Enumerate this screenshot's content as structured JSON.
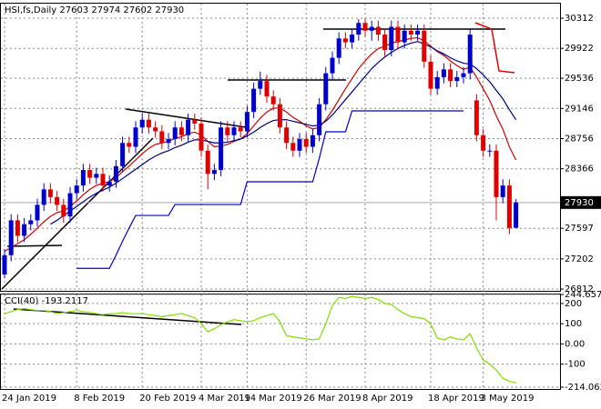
{
  "chart_data": [
    {
      "type": "candlestick",
      "title": "HSI,fs,Daily  27603 27974 27602 27930",
      "categories": [
        "24 Jan 2019",
        null,
        null,
        null,
        null,
        null,
        null,
        null,
        null,
        null,
        null,
        "8 Feb 2019",
        null,
        null,
        null,
        null,
        null,
        null,
        null,
        null,
        null,
        "20 Feb 2019",
        null,
        null,
        null,
        null,
        null,
        null,
        null,
        null,
        "4 Mar 2019",
        null,
        null,
        null,
        null,
        null,
        null,
        "14 Mar 2019",
        null,
        null,
        null,
        null,
        null,
        null,
        null,
        null,
        "26 Mar 2019",
        null,
        null,
        null,
        null,
        null,
        null,
        null,
        null,
        "8 Apr 2019",
        null,
        null,
        null,
        null,
        null,
        null,
        null,
        null,
        null,
        "18 Apr 2019",
        null,
        null,
        null,
        null,
        null,
        null,
        null,
        "3 May 2019",
        null,
        null,
        null,
        null,
        null
      ],
      "open": [
        27000,
        27250,
        27700,
        27500,
        27650,
        27700,
        27900,
        28100,
        28000,
        27900,
        27750,
        28050,
        28150,
        28350,
        28250,
        28300,
        28150,
        28200,
        28400,
        28700,
        28650,
        28900,
        29000,
        28900,
        28850,
        28700,
        28750,
        28900,
        28800,
        29000,
        28950,
        28600,
        28300,
        28350,
        28900,
        28800,
        28900,
        28850,
        29100,
        29400,
        29500,
        29300,
        29200,
        28900,
        28700,
        28600,
        28750,
        28650,
        28800,
        29200,
        29600,
        29800,
        30050,
        30000,
        30100,
        30250,
        30150,
        30200,
        30100,
        29900,
        30200,
        30000,
        30150,
        30100,
        30150,
        29750,
        29400,
        29550,
        29650,
        29500,
        29550,
        29600,
        29250,
        28800,
        28600,
        28600,
        28000,
        28150,
        27603
      ],
      "high": [
        27330,
        27780,
        27780,
        27730,
        27780,
        27980,
        28180,
        28180,
        28080,
        27980,
        28130,
        28230,
        28430,
        28430,
        28380,
        28380,
        28280,
        28480,
        28780,
        28780,
        28980,
        29080,
        29080,
        28980,
        28930,
        28830,
        28980,
        28980,
        29080,
        29080,
        29030,
        28680,
        28430,
        28980,
        28980,
        28980,
        28980,
        29180,
        29480,
        29620,
        29580,
        29380,
        29280,
        28980,
        28780,
        28830,
        28830,
        28880,
        29280,
        29680,
        29880,
        30130,
        30130,
        30180,
        30300,
        30300,
        30280,
        30280,
        30180,
        30280,
        30280,
        30230,
        30230,
        30230,
        30230,
        29830,
        29630,
        29730,
        29730,
        29630,
        29680,
        30180,
        29330,
        28880,
        28680,
        28680,
        28230,
        28230,
        27974
      ],
      "low": [
        26950,
        27170,
        27420,
        27420,
        27570,
        27620,
        27820,
        27920,
        27820,
        27670,
        27670,
        27970,
        28070,
        28170,
        28170,
        28070,
        28070,
        28120,
        28320,
        28570,
        28570,
        28820,
        28820,
        28770,
        28620,
        28620,
        28670,
        28720,
        28720,
        28870,
        28520,
        28100,
        28220,
        28270,
        28720,
        28720,
        28770,
        28770,
        29020,
        29320,
        29220,
        29120,
        28820,
        28620,
        28520,
        28520,
        28570,
        28570,
        28720,
        29120,
        29520,
        29720,
        29920,
        29920,
        30020,
        30070,
        30020,
        30020,
        29820,
        29820,
        29920,
        29920,
        30020,
        30020,
        29670,
        29320,
        29320,
        29470,
        29420,
        29420,
        29470,
        29520,
        28720,
        28520,
        28520,
        27700,
        27920,
        27520,
        27602
      ],
      "close": [
        27250,
        27700,
        27500,
        27650,
        27700,
        27900,
        28100,
        28000,
        27900,
        27750,
        28050,
        28150,
        28350,
        28250,
        28300,
        28150,
        28200,
        28400,
        28700,
        28650,
        28900,
        29000,
        28900,
        28850,
        28700,
        28750,
        28900,
        28800,
        29000,
        28950,
        28600,
        28300,
        28350,
        28900,
        28800,
        28900,
        28850,
        29100,
        29400,
        29500,
        29300,
        29200,
        28900,
        28700,
        28600,
        28750,
        28650,
        28800,
        29200,
        29600,
        29800,
        30050,
        30000,
        30100,
        30250,
        30150,
        30200,
        30100,
        29900,
        30200,
        30000,
        30150,
        30100,
        30150,
        29750,
        29400,
        29550,
        29650,
        29500,
        29550,
        29600,
        30100,
        28800,
        28600,
        28600,
        28000,
        28150,
        27600,
        27930
      ],
      "up_color": "#0000cc",
      "down_color": "#e00000",
      "series": [
        {
          "color": "#0000cc",
          "values": [
            null,
            null,
            null,
            null,
            null,
            null,
            null,
            null,
            null,
            null,
            null,
            27080,
            27080,
            27080,
            27080,
            27080,
            27080,
            27250,
            27430,
            27600,
            27763,
            27763,
            27763,
            27763,
            27763,
            27763,
            27904,
            27904,
            27904,
            27904,
            27904,
            27904,
            27904,
            27904,
            27904,
            27904,
            27904,
            28198,
            28198,
            28198,
            28198,
            28198,
            28198,
            28198,
            28198,
            28198,
            28198,
            28198,
            28500,
            28844,
            28844,
            28844,
            28844,
            29114,
            29114,
            29114,
            29114,
            29114,
            29114,
            29114,
            29114,
            29114,
            29114,
            29114,
            29114,
            29114,
            29114,
            29114,
            29114,
            29114,
            29114,
            null,
            null,
            null,
            null,
            null,
            null,
            null,
            null
          ]
        },
        {
          "color": "#cc0000",
          "values": [
            27300,
            27350,
            27400,
            27450,
            27520,
            27600,
            27680,
            27750,
            27800,
            27820,
            27880,
            27950,
            28030,
            28100,
            28150,
            28180,
            28200,
            28250,
            28330,
            28400,
            28480,
            28560,
            28630,
            28680,
            28700,
            28720,
            28760,
            28780,
            28820,
            28840,
            28800,
            28720,
            28650,
            28660,
            28680,
            28720,
            28750,
            28820,
            28920,
            29020,
            29100,
            29150,
            29150,
            29100,
            29030,
            28980,
            28920,
            28880,
            28900,
            29000,
            29120,
            29260,
            29400,
            29530,
            29660,
            29760,
            29850,
            29920,
            29950,
            29990,
            30010,
            30030,
            30050,
            30060,
            30020,
            29950,
            29880,
            29830,
            29760,
            29700,
            29650,
            29680,
            29550,
            29400,
            29250,
            29050,
            28880,
            28650,
            28480
          ]
        },
        {
          "color": "#000080",
          "values": [
            null,
            null,
            null,
            null,
            null,
            null,
            null,
            27650,
            27700,
            27760,
            27820,
            27880,
            27940,
            28000,
            28050,
            28090,
            28130,
            28180,
            28240,
            28300,
            28360,
            28420,
            28480,
            28530,
            28570,
            28600,
            28640,
            28670,
            28710,
            28740,
            28740,
            28720,
            28700,
            28700,
            28710,
            28730,
            28750,
            28790,
            28840,
            28900,
            28950,
            28990,
            29000,
            29000,
            28980,
            28960,
            28940,
            28920,
            28930,
            28980,
            29060,
            29160,
            29260,
            29360,
            29460,
            29560,
            29660,
            29740,
            29810,
            29870,
            29920,
            29960,
            29990,
            30010,
            29980,
            29940,
            29890,
            29850,
            29800,
            29760,
            29730,
            29720,
            29660,
            29580,
            29490,
            29380,
            29270,
            29130,
            29000
          ]
        }
      ],
      "last_price": 27930,
      "ylim": [
        26789,
        30488
      ],
      "yticks": [
        26812,
        27202,
        27597,
        28366,
        28756,
        29146,
        29536,
        29922,
        30312
      ],
      "grid": true
    },
    {
      "type": "line",
      "title": "CCI(40) -193.2117",
      "color": "#80dd00",
      "values": [
        150,
        160,
        170,
        175,
        170,
        165,
        165,
        160,
        150,
        155,
        160,
        165,
        160,
        155,
        150,
        145,
        150,
        150,
        155,
        150,
        150,
        150,
        145,
        140,
        135,
        140,
        145,
        150,
        140,
        130,
        100,
        60,
        75,
        95,
        110,
        120,
        115,
        110,
        115,
        130,
        140,
        150,
        110,
        40,
        35,
        30,
        25,
        20,
        25,
        100,
        190,
        230,
        225,
        235,
        230,
        225,
        230,
        220,
        200,
        195,
        170,
        150,
        135,
        130,
        125,
        100,
        30,
        20,
        35,
        25,
        20,
        50,
        -20,
        -80,
        -100,
        -130,
        -170,
        -185,
        -193.2117
      ],
      "ylim": [
        -214.062,
        244.6572
      ],
      "yticks": [
        244.6572,
        200,
        100,
        {
          "value": 0,
          "label": "0.00"
        },
        -100,
        -214.062
      ],
      "grid": true
    }
  ]
}
